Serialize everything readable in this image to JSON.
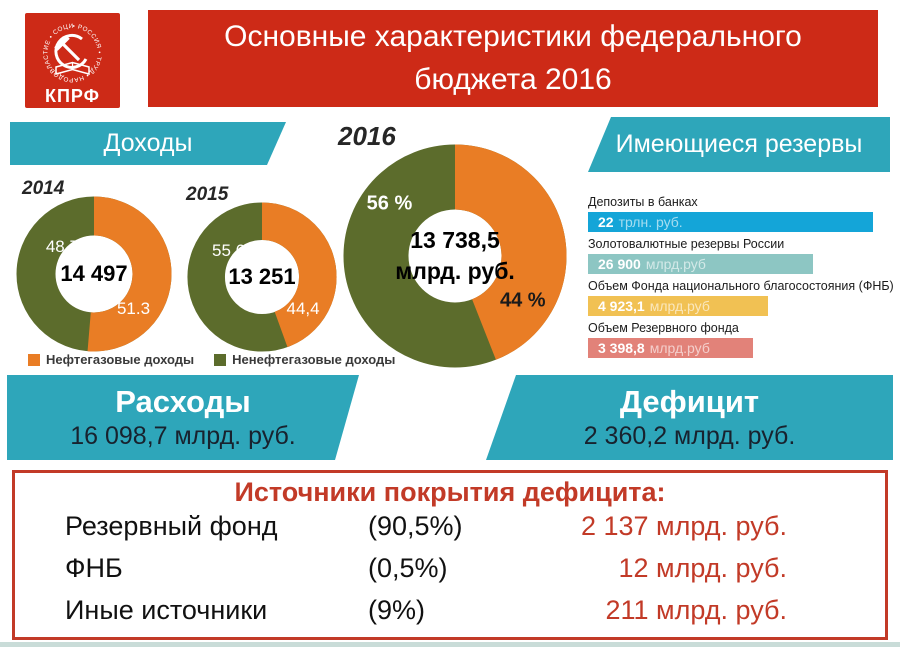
{
  "logo": {
    "org": "КПРФ",
    "ring_text": "• РОССИЯ • ТРУД • НАРОДОВЛАСТИЕ • СОЦИАЛИЗМ"
  },
  "title": {
    "line1": "Основные характеристики федерального",
    "line2": "бюджета 2016"
  },
  "colors": {
    "red": "#cd2a17",
    "teal": "#2ea6ba",
    "orange": "#e97d25",
    "green": "#5c6c2c",
    "value_red": "#c23a27",
    "dark_value": "#18222e"
  },
  "incomes": {
    "section_label": "Доходы",
    "charts": [
      {
        "year": "2014",
        "center": "14 497",
        "green_label": "48.7",
        "orange_label": "51.3",
        "orange_pct": 51.3
      },
      {
        "year": "2015",
        "center": "13 251",
        "green_label": "55,6",
        "orange_label": "44,4",
        "orange_pct": 44.4
      },
      {
        "year": "2016",
        "center_line1": "13 738,5",
        "center_line2": "млрд. руб.",
        "green_label": "56 %",
        "orange_label": "44 %",
        "orange_pct": 44
      }
    ],
    "legend": [
      {
        "label": "Нефтегазовые доходы",
        "color": "#e97d25"
      },
      {
        "label": "Ненефтегазовые доходы",
        "color": "#5c6c2c"
      }
    ]
  },
  "reserves": {
    "section_label": "Имеющиеся резервы",
    "items": [
      {
        "label": "Депозиты в банках",
        "value": "22",
        "unit": "трлн. руб.",
        "color": "#14a5d8",
        "width_pct": 95
      },
      {
        "label": "Золотовалютные резервы России",
        "value": "26 900",
        "unit": "млрд.руб",
        "color": "#8dc6c3",
        "width_pct": 75
      },
      {
        "label": "Объем Фонда национального благосостояния (ФНБ)",
        "value": "4 923,1",
        "unit": "млрд.руб",
        "color": "#f1c153",
        "width_pct": 60
      },
      {
        "label": "Объем Резервного фонда",
        "value": "3 398,8",
        "unit": "млрд.руб",
        "color": "#e28279",
        "width_pct": 55
      }
    ]
  },
  "expenses": {
    "label": "Расходы",
    "value": "16 098,7 млрд. руб."
  },
  "deficit": {
    "label": "Дефицит",
    "value": "2 360,2 млрд. руб."
  },
  "deficit_sources": {
    "title": "Источники покрытия дефицита:",
    "rows": [
      {
        "name": "Резервный фонд",
        "pct": "(90,5%)",
        "value": "2 137 млрд. руб."
      },
      {
        "name": "ФНБ",
        "pct": "(0,5%)",
        "value": "12 млрд. руб."
      },
      {
        "name": "Иные источники",
        "pct": "(9%)",
        "value": "211 млрд. руб."
      }
    ]
  },
  "chart_data": [
    {
      "type": "pie",
      "title": "Доходы 2014",
      "categories": [
        "Нефтегазовые доходы",
        "Ненефтегазовые доходы"
      ],
      "values": [
        51.3,
        48.7
      ],
      "center_label": "14 497",
      "legend_position": "bottom"
    },
    {
      "type": "pie",
      "title": "Доходы 2015",
      "categories": [
        "Нефтегазовые доходы",
        "Ненефтегазовые доходы"
      ],
      "values": [
        44.4,
        55.6
      ],
      "center_label": "13 251",
      "legend_position": "bottom"
    },
    {
      "type": "pie",
      "title": "Доходы 2016",
      "categories": [
        "Нефтегазовые доходы",
        "Ненефтегазовые доходы"
      ],
      "values": [
        44,
        56
      ],
      "center_label": "13 738,5 млрд. руб.",
      "legend_position": "bottom"
    },
    {
      "type": "bar",
      "orientation": "horizontal",
      "title": "Имеющиеся резервы",
      "categories": [
        "Депозиты в банках",
        "Золотовалютные резервы России",
        "Объем Фонда национального благосостояния (ФНБ)",
        "Объем Резервного фонда"
      ],
      "values_display": [
        "22 трлн. руб.",
        "26 900 млрд.руб",
        "4 923,1 млрд.руб",
        "3 398,8 млрд.руб"
      ],
      "bar_length_pct": [
        95,
        75,
        60,
        55
      ]
    }
  ]
}
